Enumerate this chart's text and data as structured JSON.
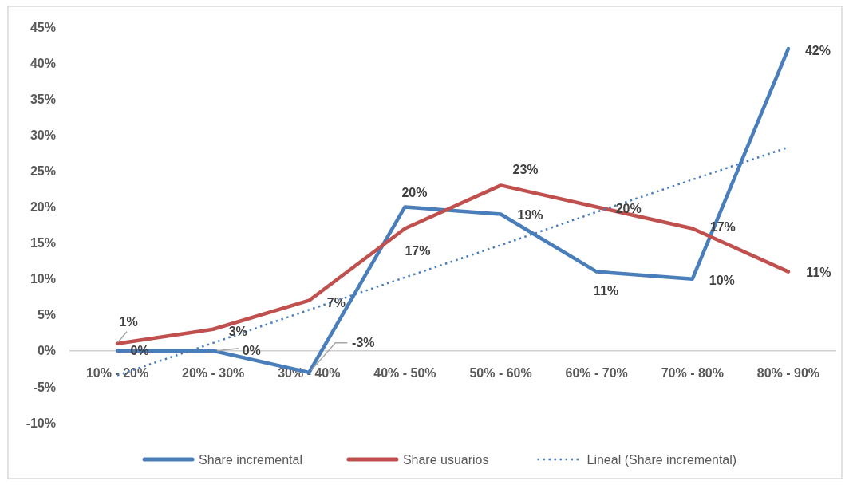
{
  "chart_data": {
    "type": "line",
    "categories": [
      "10% - 20%",
      "20% - 30%",
      "30% - 40%",
      "40% - 50%",
      "50% - 60%",
      "60% - 70%",
      "70% - 80%",
      "80% - 90%"
    ],
    "series": [
      {
        "name": "Share incremental",
        "color": "#4a7ebb",
        "values": [
          0,
          0,
          -3,
          20,
          19,
          11,
          10,
          42
        ],
        "value_labels": [
          "0%",
          "0%",
          "-3%",
          "20%",
          "19%",
          "11%",
          "10%",
          "42%"
        ]
      },
      {
        "name": "Share usuarios",
        "color": "#c0504d",
        "values": [
          1,
          3,
          7,
          17,
          23,
          20,
          17,
          11
        ],
        "value_labels": [
          "1%",
          "3%",
          "7%",
          "17%",
          "23%",
          "20%",
          "17%",
          "11%"
        ]
      },
      {
        "name": "Lineal (Share incremental)",
        "color": "#4a7ebb",
        "line_style": "dotted",
        "values": [
          -3.4,
          1.1,
          5.7,
          10.2,
          14.7,
          19.3,
          23.8,
          28.3
        ]
      }
    ],
    "ylim": [
      -10,
      45
    ],
    "yticks": [
      {
        "value": -10,
        "label": "-10%"
      },
      {
        "value": -5,
        "label": "-5%"
      },
      {
        "value": 0,
        "label": "0%"
      },
      {
        "value": 5,
        "label": "5%"
      },
      {
        "value": 10,
        "label": "10%"
      },
      {
        "value": 15,
        "label": "15%"
      },
      {
        "value": 20,
        "label": "20%"
      },
      {
        "value": 25,
        "label": "25%"
      },
      {
        "value": 30,
        "label": "30%"
      },
      {
        "value": 35,
        "label": "35%"
      },
      {
        "value": 40,
        "label": "40%"
      },
      {
        "value": 45,
        "label": "45%"
      }
    ],
    "legend": "bottom"
  }
}
